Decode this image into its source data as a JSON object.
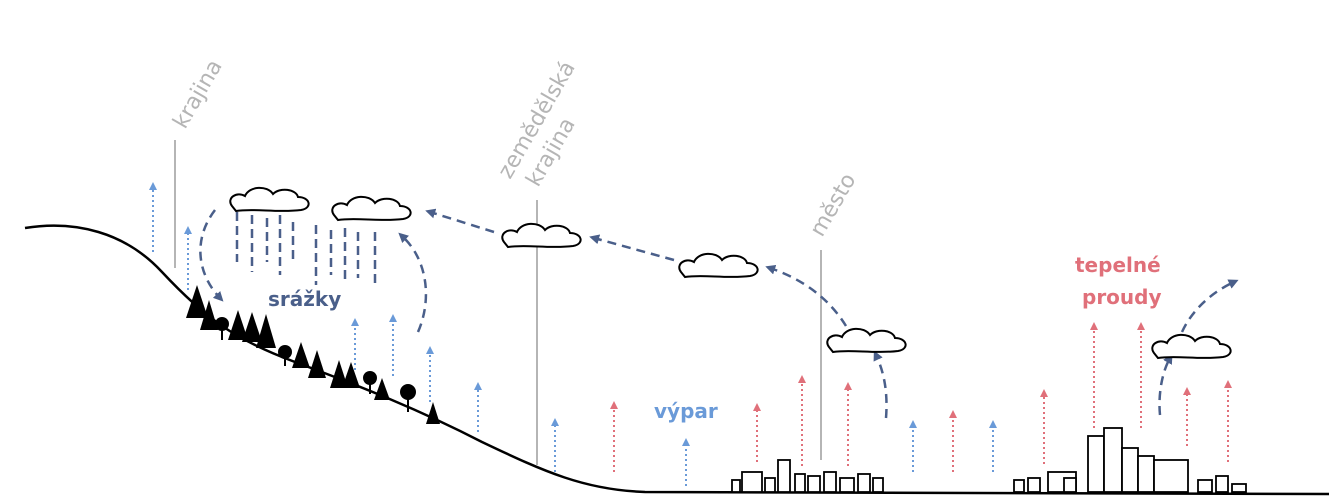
{
  "labels": {
    "landscape": "krajina",
    "agricultural": [
      "zemědělská",
      "krajina"
    ],
    "city": "město",
    "precipitation": "srážky",
    "evaporation": "výpar",
    "thermal": [
      "tepelné",
      "proudy"
    ]
  }
}
